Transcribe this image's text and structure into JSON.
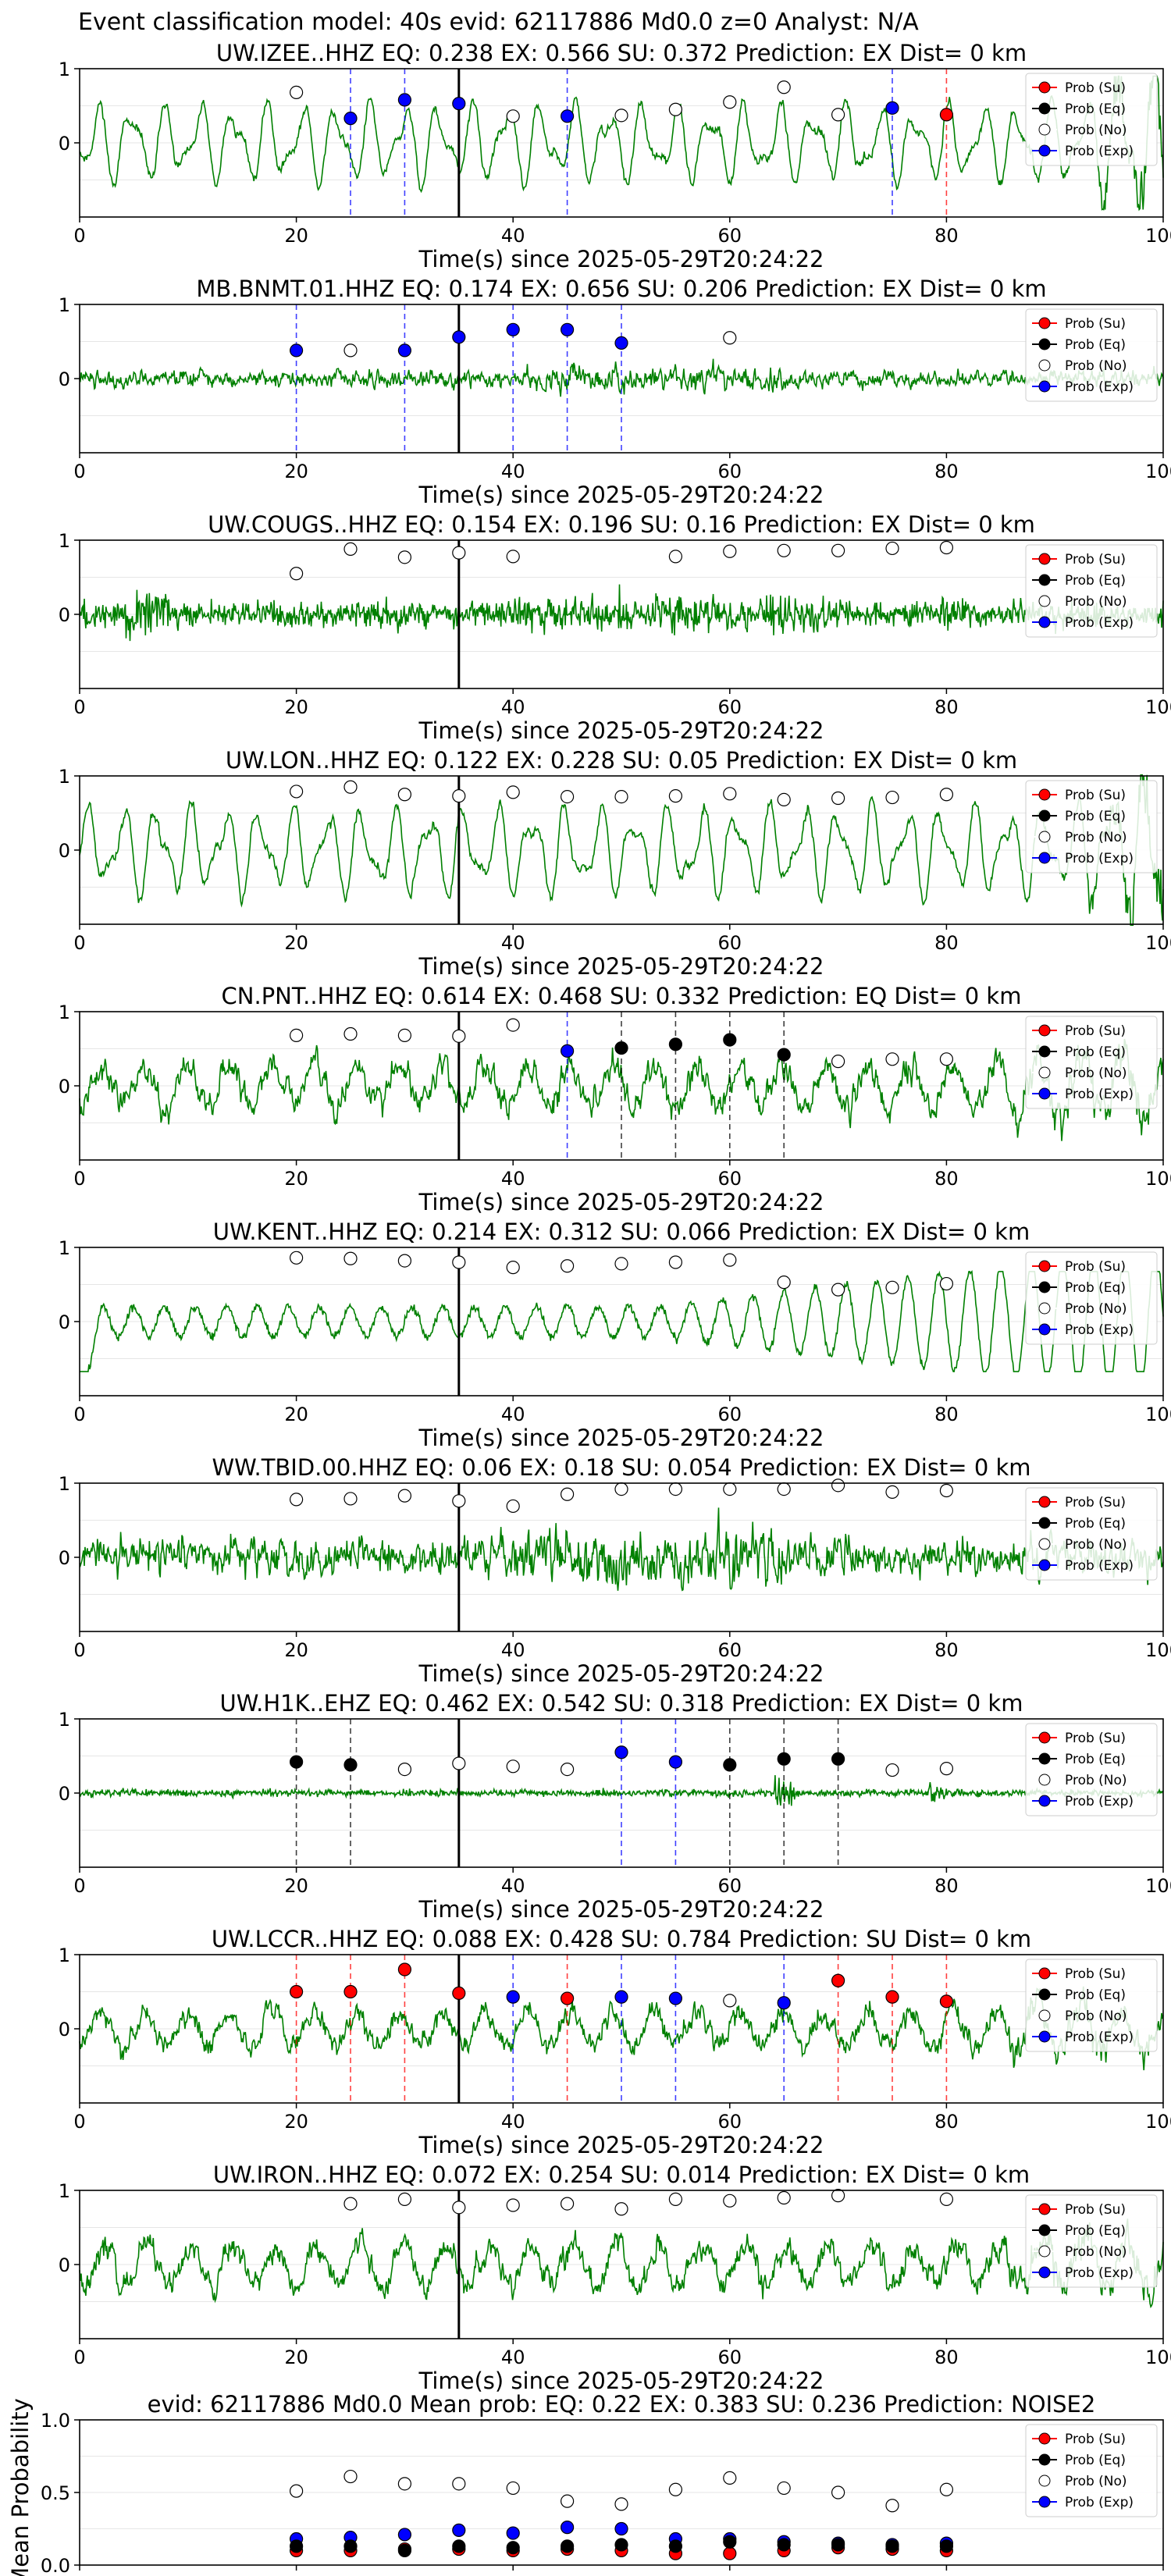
{
  "figure": {
    "suptitle": "Event classification model: 40s evid: 62117886 Md0.0 z=0 Analyst: N/A",
    "colors": {
      "waveform": "#008000",
      "su": "#ff0000",
      "eq": "#000000",
      "exp": "#0000ff",
      "no": "#ffffff"
    },
    "legend": [
      "Prob (Su)",
      "Prob (Eq)",
      "Prob (No)",
      "Prob (Exp)"
    ]
  },
  "chart_data": [
    {
      "type": "line",
      "title": "UW.IZEE..HHZ   EQ: 0.238  EX: 0.566  SU: 0.372   Prediction: EX    Dist= 0 km",
      "xlabel": "Time(s) since 2025-05-29T20:24:22",
      "xlim": [
        0,
        100
      ],
      "ylim": [
        -1,
        1
      ],
      "xticks": [
        "0",
        "20",
        "40",
        "60",
        "80",
        "100"
      ],
      "yticks": [
        "1",
        "0"
      ],
      "pick_time": 35,
      "wave": {
        "style": "smooth",
        "seed": 11,
        "amp": 0.4
      },
      "points": [
        {
          "x": 20,
          "y": 0.68,
          "c": "no"
        },
        {
          "x": 25,
          "y": 0.33,
          "c": "exp"
        },
        {
          "x": 30,
          "y": 0.58,
          "c": "exp"
        },
        {
          "x": 35,
          "y": 0.53,
          "c": "exp"
        },
        {
          "x": 40,
          "y": 0.36,
          "c": "no"
        },
        {
          "x": 45,
          "y": 0.36,
          "c": "exp"
        },
        {
          "x": 50,
          "y": 0.37,
          "c": "no"
        },
        {
          "x": 55,
          "y": 0.45,
          "c": "no"
        },
        {
          "x": 60,
          "y": 0.55,
          "c": "no"
        },
        {
          "x": 65,
          "y": 0.75,
          "c": "no"
        },
        {
          "x": 70,
          "y": 0.38,
          "c": "no"
        },
        {
          "x": 75,
          "y": 0.47,
          "c": "exp"
        },
        {
          "x": 80,
          "y": 0.38,
          "c": "su"
        }
      ]
    },
    {
      "type": "line",
      "title": "MB.BNMT.01.HHZ   EQ: 0.174  EX: 0.656  SU: 0.206   Prediction: EX    Dist= 0 km",
      "xlabel": "Time(s) since 2025-05-29T20:24:22",
      "xlim": [
        0,
        100
      ],
      "ylim": [
        -1,
        1
      ],
      "xticks": [
        "0",
        "20",
        "40",
        "60",
        "80",
        "100"
      ],
      "yticks": [
        "1",
        "0"
      ],
      "pick_time": 35,
      "wave": {
        "style": "noise",
        "seed": 22,
        "amp": 0.18
      },
      "points": [
        {
          "x": 20,
          "y": 0.38,
          "c": "exp"
        },
        {
          "x": 25,
          "y": 0.38,
          "c": "no"
        },
        {
          "x": 30,
          "y": 0.38,
          "c": "exp"
        },
        {
          "x": 35,
          "y": 0.56,
          "c": "exp"
        },
        {
          "x": 40,
          "y": 0.66,
          "c": "exp"
        },
        {
          "x": 45,
          "y": 0.66,
          "c": "exp"
        },
        {
          "x": 50,
          "y": 0.48,
          "c": "exp"
        },
        {
          "x": 60,
          "y": 0.55,
          "c": "no"
        }
      ]
    },
    {
      "type": "line",
      "title": "UW.COUGS..HHZ   EQ: 0.154  EX: 0.196  SU: 0.16   Prediction: EX    Dist= 0 km",
      "xlabel": "Time(s) since 2025-05-29T20:24:22",
      "xlim": [
        0,
        100
      ],
      "ylim": [
        -1,
        1
      ],
      "xticks": [
        "0",
        "20",
        "40",
        "60",
        "80",
        "100"
      ],
      "yticks": [
        "1",
        "0"
      ],
      "pick_time": 35,
      "wave": {
        "style": "burst",
        "seed": 33,
        "amp": 0.25
      },
      "points": [
        {
          "x": 20,
          "y": 0.55,
          "c": "no"
        },
        {
          "x": 25,
          "y": 0.88,
          "c": "no"
        },
        {
          "x": 30,
          "y": 0.77,
          "c": "no"
        },
        {
          "x": 35,
          "y": 0.83,
          "c": "no"
        },
        {
          "x": 40,
          "y": 0.78,
          "c": "no"
        },
        {
          "x": 55,
          "y": 0.78,
          "c": "no"
        },
        {
          "x": 60,
          "y": 0.85,
          "c": "no"
        },
        {
          "x": 65,
          "y": 0.86,
          "c": "no"
        },
        {
          "x": 70,
          "y": 0.86,
          "c": "no"
        },
        {
          "x": 75,
          "y": 0.89,
          "c": "no"
        },
        {
          "x": 80,
          "y": 0.9,
          "c": "no"
        }
      ]
    },
    {
      "type": "line",
      "title": "UW.LON..HHZ   EQ: 0.122  EX: 0.228  SU: 0.05   Prediction: EX    Dist= 0 km",
      "xlabel": "Time(s) since 2025-05-29T20:24:22",
      "xlim": [
        0,
        100
      ],
      "ylim": [
        -1,
        1
      ],
      "xticks": [
        "0",
        "20",
        "40",
        "60",
        "80",
        "100"
      ],
      "yticks": [
        "1",
        "0"
      ],
      "pick_time": 35,
      "wave": {
        "style": "smooth",
        "seed": 44,
        "amp": 0.45
      },
      "points": [
        {
          "x": 20,
          "y": 0.79,
          "c": "no"
        },
        {
          "x": 25,
          "y": 0.85,
          "c": "no"
        },
        {
          "x": 30,
          "y": 0.75,
          "c": "no"
        },
        {
          "x": 35,
          "y": 0.73,
          "c": "no"
        },
        {
          "x": 40,
          "y": 0.78,
          "c": "no"
        },
        {
          "x": 45,
          "y": 0.72,
          "c": "no"
        },
        {
          "x": 50,
          "y": 0.72,
          "c": "no"
        },
        {
          "x": 55,
          "y": 0.73,
          "c": "no"
        },
        {
          "x": 60,
          "y": 0.76,
          "c": "no"
        },
        {
          "x": 65,
          "y": 0.68,
          "c": "no"
        },
        {
          "x": 70,
          "y": 0.7,
          "c": "no"
        },
        {
          "x": 75,
          "y": 0.71,
          "c": "no"
        },
        {
          "x": 80,
          "y": 0.75,
          "c": "no"
        }
      ]
    },
    {
      "type": "line",
      "title": "CN.PNT..HHZ   EQ: 0.614  EX: 0.468  SU: 0.332   Prediction: EQ    Dist= 0 km",
      "xlabel": "Time(s) since 2025-05-29T20:24:22",
      "xlim": [
        0,
        100
      ],
      "ylim": [
        -1,
        1
      ],
      "xticks": [
        "0",
        "20",
        "40",
        "60",
        "80",
        "100"
      ],
      "yticks": [
        "1",
        "0"
      ],
      "pick_time": 35,
      "wave": {
        "style": "rough",
        "seed": 55,
        "amp": 0.42
      },
      "points": [
        {
          "x": 20,
          "y": 0.68,
          "c": "no"
        },
        {
          "x": 25,
          "y": 0.7,
          "c": "no"
        },
        {
          "x": 30,
          "y": 0.68,
          "c": "no"
        },
        {
          "x": 35,
          "y": 0.67,
          "c": "no"
        },
        {
          "x": 40,
          "y": 0.82,
          "c": "no"
        },
        {
          "x": 45,
          "y": 0.47,
          "c": "exp"
        },
        {
          "x": 50,
          "y": 0.51,
          "c": "eq"
        },
        {
          "x": 55,
          "y": 0.56,
          "c": "eq"
        },
        {
          "x": 60,
          "y": 0.62,
          "c": "eq"
        },
        {
          "x": 65,
          "y": 0.42,
          "c": "eq"
        },
        {
          "x": 70,
          "y": 0.33,
          "c": "no"
        },
        {
          "x": 75,
          "y": 0.36,
          "c": "no"
        },
        {
          "x": 80,
          "y": 0.36,
          "c": "no"
        }
      ]
    },
    {
      "type": "line",
      "title": "UW.KENT..HHZ   EQ: 0.214  EX: 0.312  SU: 0.066   Prediction: EX    Dist= 0 km",
      "xlabel": "Time(s) since 2025-05-29T20:24:22",
      "xlim": [
        0,
        100
      ],
      "ylim": [
        -1,
        1
      ],
      "xticks": [
        "0",
        "20",
        "40",
        "60",
        "80",
        "100"
      ],
      "yticks": [
        "1",
        "0"
      ],
      "pick_time": 35,
      "wave": {
        "style": "kent",
        "seed": 66,
        "amp": 0.3
      },
      "points": [
        {
          "x": 20,
          "y": 0.86,
          "c": "no"
        },
        {
          "x": 25,
          "y": 0.85,
          "c": "no"
        },
        {
          "x": 30,
          "y": 0.82,
          "c": "no"
        },
        {
          "x": 35,
          "y": 0.8,
          "c": "no"
        },
        {
          "x": 40,
          "y": 0.73,
          "c": "no"
        },
        {
          "x": 45,
          "y": 0.75,
          "c": "no"
        },
        {
          "x": 50,
          "y": 0.78,
          "c": "no"
        },
        {
          "x": 55,
          "y": 0.8,
          "c": "no"
        },
        {
          "x": 60,
          "y": 0.83,
          "c": "no"
        },
        {
          "x": 65,
          "y": 0.53,
          "c": "no"
        },
        {
          "x": 70,
          "y": 0.43,
          "c": "no"
        },
        {
          "x": 75,
          "y": 0.46,
          "c": "no"
        },
        {
          "x": 80,
          "y": 0.51,
          "c": "no"
        }
      ]
    },
    {
      "type": "line",
      "title": "WW.TBID.00.HHZ   EQ: 0.06  EX: 0.18  SU: 0.054   Prediction: EX    Dist= 0 km",
      "xlabel": "Time(s) since 2025-05-29T20:24:22",
      "xlim": [
        0,
        100
      ],
      "ylim": [
        -1,
        1
      ],
      "xticks": [
        "0",
        "20",
        "40",
        "60",
        "80",
        "100"
      ],
      "yticks": [
        "1",
        "0"
      ],
      "pick_time": 35,
      "wave": {
        "style": "noise",
        "seed": 77,
        "amp": 0.4
      },
      "points": [
        {
          "x": 20,
          "y": 0.78,
          "c": "no"
        },
        {
          "x": 25,
          "y": 0.79,
          "c": "no"
        },
        {
          "x": 30,
          "y": 0.83,
          "c": "no"
        },
        {
          "x": 35,
          "y": 0.76,
          "c": "no"
        },
        {
          "x": 40,
          "y": 0.69,
          "c": "no"
        },
        {
          "x": 45,
          "y": 0.85,
          "c": "no"
        },
        {
          "x": 50,
          "y": 0.92,
          "c": "no"
        },
        {
          "x": 55,
          "y": 0.92,
          "c": "no"
        },
        {
          "x": 60,
          "y": 0.92,
          "c": "no"
        },
        {
          "x": 65,
          "y": 0.92,
          "c": "no"
        },
        {
          "x": 70,
          "y": 0.97,
          "c": "no"
        },
        {
          "x": 75,
          "y": 0.88,
          "c": "no"
        },
        {
          "x": 80,
          "y": 0.9,
          "c": "no"
        }
      ]
    },
    {
      "type": "line",
      "title": "UW.H1K..EHZ   EQ: 0.462  EX: 0.542  SU: 0.318   Prediction: EX    Dist= 0 km",
      "xlabel": "Time(s) since 2025-05-29T20:24:22",
      "xlim": [
        0,
        100
      ],
      "ylim": [
        -1,
        1
      ],
      "xticks": [
        "0",
        "20",
        "40",
        "60",
        "80",
        "100"
      ],
      "yticks": [
        "1",
        "0"
      ],
      "pick_time": 35,
      "wave": {
        "style": "quiet",
        "seed": 88,
        "amp": 0.12
      },
      "points": [
        {
          "x": 20,
          "y": 0.42,
          "c": "eq"
        },
        {
          "x": 25,
          "y": 0.38,
          "c": "eq"
        },
        {
          "x": 30,
          "y": 0.32,
          "c": "no"
        },
        {
          "x": 35,
          "y": 0.4,
          "c": "no"
        },
        {
          "x": 40,
          "y": 0.36,
          "c": "no"
        },
        {
          "x": 45,
          "y": 0.32,
          "c": "no"
        },
        {
          "x": 50,
          "y": 0.55,
          "c": "exp"
        },
        {
          "x": 55,
          "y": 0.42,
          "c": "exp"
        },
        {
          "x": 60,
          "y": 0.38,
          "c": "eq"
        },
        {
          "x": 65,
          "y": 0.46,
          "c": "eq"
        },
        {
          "x": 70,
          "y": 0.46,
          "c": "eq"
        },
        {
          "x": 75,
          "y": 0.31,
          "c": "no"
        },
        {
          "x": 80,
          "y": 0.33,
          "c": "no"
        }
      ]
    },
    {
      "type": "line",
      "title": "UW.LCCR..HHZ   EQ: 0.088  EX: 0.428  SU: 0.784   Prediction: SU    Dist= 0 km",
      "xlabel": "Time(s) since 2025-05-29T20:24:22",
      "xlim": [
        0,
        100
      ],
      "ylim": [
        -1,
        1
      ],
      "xticks": [
        "0",
        "20",
        "40",
        "60",
        "80",
        "100"
      ],
      "yticks": [
        "1",
        "0"
      ],
      "pick_time": 35,
      "wave": {
        "style": "rough",
        "seed": 99,
        "amp": 0.35
      },
      "points": [
        {
          "x": 20,
          "y": 0.5,
          "c": "su"
        },
        {
          "x": 25,
          "y": 0.5,
          "c": "su"
        },
        {
          "x": 30,
          "y": 0.8,
          "c": "su"
        },
        {
          "x": 35,
          "y": 0.48,
          "c": "su"
        },
        {
          "x": 40,
          "y": 0.43,
          "c": "exp"
        },
        {
          "x": 45,
          "y": 0.41,
          "c": "su"
        },
        {
          "x": 50,
          "y": 0.43,
          "c": "exp"
        },
        {
          "x": 55,
          "y": 0.41,
          "c": "exp"
        },
        {
          "x": 60,
          "y": 0.38,
          "c": "no"
        },
        {
          "x": 65,
          "y": 0.35,
          "c": "exp"
        },
        {
          "x": 70,
          "y": 0.65,
          "c": "su"
        },
        {
          "x": 75,
          "y": 0.43,
          "c": "su"
        },
        {
          "x": 80,
          "y": 0.37,
          "c": "su"
        }
      ]
    },
    {
      "type": "line",
      "title": "UW.IRON..HHZ   EQ: 0.072  EX: 0.254  SU: 0.014   Prediction: EX    Dist= 0 km",
      "xlabel": "Time(s) since 2025-05-29T20:24:22",
      "xlim": [
        0,
        100
      ],
      "ylim": [
        -1,
        1
      ],
      "xticks": [
        "0",
        "20",
        "40",
        "60",
        "80",
        "100"
      ],
      "yticks": [
        "1",
        "0"
      ],
      "pick_time": 35,
      "wave": {
        "style": "rough",
        "seed": 111,
        "amp": 0.4
      },
      "points": [
        {
          "x": 25,
          "y": 0.82,
          "c": "no"
        },
        {
          "x": 30,
          "y": 0.88,
          "c": "no"
        },
        {
          "x": 35,
          "y": 0.77,
          "c": "no"
        },
        {
          "x": 40,
          "y": 0.8,
          "c": "no"
        },
        {
          "x": 45,
          "y": 0.82,
          "c": "no"
        },
        {
          "x": 50,
          "y": 0.75,
          "c": "no"
        },
        {
          "x": 55,
          "y": 0.88,
          "c": "no"
        },
        {
          "x": 60,
          "y": 0.86,
          "c": "no"
        },
        {
          "x": 65,
          "y": 0.9,
          "c": "no"
        },
        {
          "x": 70,
          "y": 0.93,
          "c": "no"
        },
        {
          "x": 80,
          "y": 0.88,
          "c": "no"
        }
      ]
    },
    {
      "type": "scatter",
      "title": "evid: 62117886  Md0.0   Mean prob:   EQ: 0.22  EX: 0.383  SU: 0.236   Prediction: NOISE2",
      "xlabel": "",
      "ylabel": "Mean Probability",
      "xlim": [
        0,
        100
      ],
      "ylim": [
        0,
        1
      ],
      "xticks": [
        "0",
        "20",
        "40",
        "60",
        "80",
        "100"
      ],
      "yticks": [
        "1.0",
        "0.5",
        "0.0"
      ],
      "x": [
        20,
        25,
        30,
        35,
        40,
        45,
        50,
        55,
        60,
        65,
        70,
        75,
        80
      ],
      "series": [
        {
          "name": "Prob (No)",
          "c": "no",
          "values": [
            0.51,
            0.61,
            0.56,
            0.56,
            0.53,
            0.44,
            0.42,
            0.52,
            0.6,
            0.53,
            0.5,
            0.41,
            0.52
          ]
        },
        {
          "name": "Prob (Exp)",
          "c": "exp",
          "values": [
            0.18,
            0.19,
            0.21,
            0.24,
            0.22,
            0.26,
            0.25,
            0.18,
            0.18,
            0.16,
            0.15,
            0.14,
            0.15
          ]
        },
        {
          "name": "Prob (Su)",
          "c": "su",
          "values": [
            0.1,
            0.1,
            0.11,
            0.11,
            0.1,
            0.11,
            0.1,
            0.08,
            0.08,
            0.1,
            0.12,
            0.11,
            0.1
          ]
        },
        {
          "name": "Prob (Eq)",
          "c": "eq",
          "values": [
            0.13,
            0.13,
            0.1,
            0.13,
            0.12,
            0.13,
            0.14,
            0.13,
            0.16,
            0.14,
            0.14,
            0.13,
            0.13
          ]
        }
      ]
    }
  ]
}
